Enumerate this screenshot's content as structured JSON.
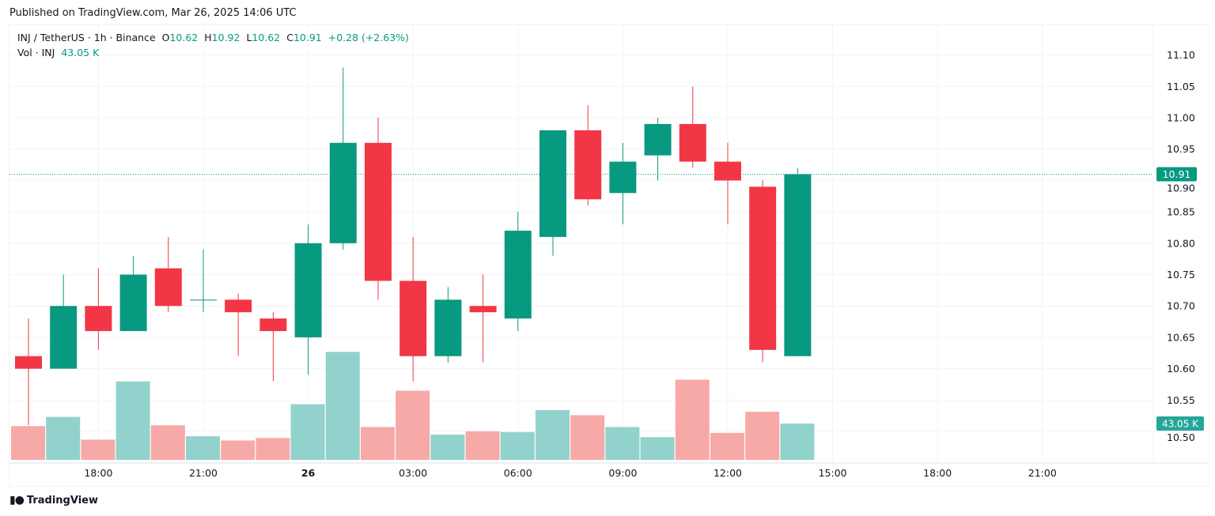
{
  "header": {
    "published": "Published on TradingView.com, Mar 26, 2025 14:06 UTC"
  },
  "legend": {
    "symbol": "INJ / TetherUS · 1h · Binance",
    "open_label": "O",
    "open": "10.62",
    "high_label": "H",
    "high": "10.92",
    "low_label": "L",
    "low": "10.62",
    "close_label": "C",
    "close": "10.91",
    "change": "+0.28 (+2.63%)",
    "volume_label": "Vol · INJ",
    "volume": "43.05 K"
  },
  "branding": {
    "name": "TradingView",
    "logo_text": "17"
  },
  "chart_data": {
    "type": "candlestick",
    "interval": "1h",
    "x": [
      "16:00",
      "17:00",
      "18:00",
      "19:00",
      "20:00",
      "21:00",
      "22:00",
      "23:00",
      "00:00",
      "01:00",
      "02:00",
      "03:00",
      "04:00",
      "05:00",
      "06:00",
      "07:00",
      "08:00",
      "09:00",
      "10:00",
      "11:00",
      "12:00",
      "13:00",
      "14:00"
    ],
    "ohlc": [
      [
        10.62,
        10.68,
        10.51,
        10.6
      ],
      [
        10.6,
        10.75,
        10.6,
        10.7
      ],
      [
        10.7,
        10.76,
        10.63,
        10.66
      ],
      [
        10.66,
        10.78,
        10.66,
        10.75
      ],
      [
        10.76,
        10.81,
        10.69,
        10.7
      ],
      [
        10.71,
        10.79,
        10.69,
        10.71
      ],
      [
        10.71,
        10.72,
        10.62,
        10.69
      ],
      [
        10.68,
        10.69,
        10.58,
        10.66
      ],
      [
        10.65,
        10.83,
        10.59,
        10.8
      ],
      [
        10.8,
        11.08,
        10.79,
        10.96
      ],
      [
        10.96,
        11.0,
        10.71,
        10.74
      ],
      [
        10.74,
        10.81,
        10.58,
        10.62
      ],
      [
        10.62,
        10.73,
        10.61,
        10.71
      ],
      [
        10.7,
        10.75,
        10.61,
        10.69
      ],
      [
        10.68,
        10.85,
        10.66,
        10.82
      ],
      [
        10.81,
        10.98,
        10.78,
        10.98
      ],
      [
        10.98,
        11.02,
        10.86,
        10.87
      ],
      [
        10.88,
        10.96,
        10.83,
        10.93
      ],
      [
        10.94,
        11.0,
        10.9,
        10.99
      ],
      [
        10.99,
        11.05,
        10.92,
        10.93
      ],
      [
        10.93,
        10.96,
        10.83,
        10.9
      ],
      [
        10.89,
        10.9,
        10.61,
        10.63
      ],
      [
        10.62,
        10.92,
        10.62,
        10.91
      ]
    ],
    "volume_k": [
      40,
      51,
      24,
      93,
      41,
      28,
      23,
      26,
      66,
      128,
      39,
      82,
      30,
      34,
      33,
      59,
      53,
      39,
      27,
      95,
      32,
      57,
      43.05
    ],
    "y_ticks": [
      "11.10",
      "11.05",
      "11.00",
      "10.95",
      "10.90",
      "10.85",
      "10.80",
      "10.75",
      "10.70",
      "10.65",
      "10.60",
      "10.55",
      "10.50"
    ],
    "ylim": [
      10.465,
      11.145
    ],
    "x_ticks": [
      {
        "label": "18:00",
        "index": 2
      },
      {
        "label": "21:00",
        "index": 5
      },
      {
        "label": "26",
        "index": 8,
        "bold": true
      },
      {
        "label": "03:00",
        "index": 11
      },
      {
        "label": "06:00",
        "index": 14
      },
      {
        "label": "09:00",
        "index": 17
      },
      {
        "label": "12:00",
        "index": 20
      },
      {
        "label": "15:00",
        "index": 23
      },
      {
        "label": "18:00",
        "index": 26
      },
      {
        "label": "21:00",
        "index": 29
      }
    ],
    "last_price_label": "10.91",
    "last_volume_label": "43.05 K",
    "grid": true,
    "colors": {
      "up": "#089981",
      "down": "#f23645",
      "vol_up": "#92d2cc",
      "vol_down": "#f7a9a7",
      "grid": "#f3f4f7",
      "text": "#131722"
    }
  }
}
